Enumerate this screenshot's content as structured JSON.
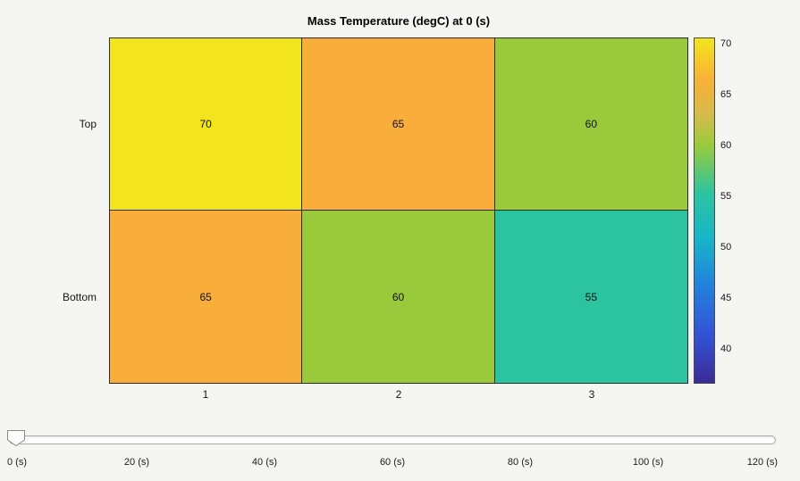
{
  "chart_data": {
    "type": "heatmap",
    "title": "Mass Temperature (degC) at 0 (s)",
    "x_categories": [
      "1",
      "2",
      "3"
    ],
    "y_categories": [
      "Top",
      "Bottom"
    ],
    "values": [
      [
        70,
        65,
        60
      ],
      [
        65,
        60,
        55
      ]
    ],
    "cell_colors": [
      [
        "#f2e51e",
        "#f9ad3b",
        "#9aca3c"
      ],
      [
        "#f9ad3b",
        "#9aca3c",
        "#2cc4a0"
      ]
    ],
    "xlabel": "",
    "ylabel": "",
    "colorbar": {
      "min": 36.6,
      "max": 70.6,
      "ticks": [
        70,
        65,
        60,
        55,
        50,
        45,
        40
      ],
      "stops": [
        {
          "pos": 0,
          "color": "#f3e51d"
        },
        {
          "pos": 12,
          "color": "#f9b137"
        },
        {
          "pos": 22,
          "color": "#d6ba4a"
        },
        {
          "pos": 31,
          "color": "#9aca3c"
        },
        {
          "pos": 45,
          "color": "#2cc4a0"
        },
        {
          "pos": 58,
          "color": "#18b5c8"
        },
        {
          "pos": 72,
          "color": "#2380dd"
        },
        {
          "pos": 86,
          "color": "#3353d6"
        },
        {
          "pos": 100,
          "color": "#3a2b96"
        }
      ]
    }
  },
  "slider": {
    "value": 0,
    "min": 0,
    "max": 120,
    "ticks": [
      "0 (s)",
      "20 (s)",
      "40 (s)",
      "60 (s)",
      "80 (s)",
      "100 (s)",
      "120 (s)"
    ]
  }
}
